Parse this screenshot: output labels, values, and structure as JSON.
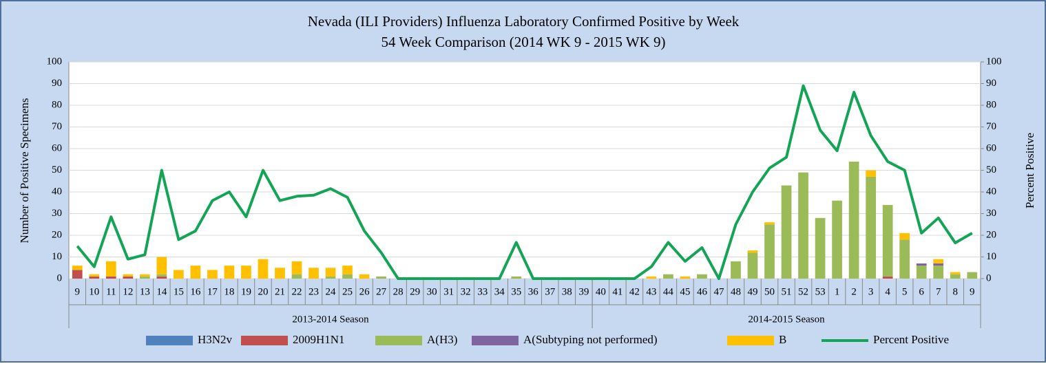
{
  "chart_data": {
    "type": "bar+line",
    "title": "Nevada (ILI Providers) Influenza Laboratory Confirmed Positive by Week",
    "subtitle": "54 Week Comparison (2014 WK 9 - 2015 WK 9)",
    "y_label": "Number of Positive Specimens",
    "y2_label": "Percent Positive",
    "categories": [
      "9",
      "10",
      "11",
      "12",
      "13",
      "14",
      "15",
      "16",
      "17",
      "18",
      "19",
      "20",
      "21",
      "22",
      "23",
      "24",
      "25",
      "26",
      "27",
      "28",
      "29",
      "30",
      "31",
      "32",
      "33",
      "34",
      "35",
      "36",
      "37",
      "38",
      "39",
      "40",
      "41",
      "42",
      "43",
      "44",
      "45",
      "46",
      "47",
      "48",
      "49",
      "50",
      "51",
      "52",
      "53",
      "1",
      "2",
      "3",
      "4",
      "5",
      "6",
      "7",
      "8",
      "9"
    ],
    "category_groups": [
      {
        "label": "2013-2014 Season",
        "count": 31
      },
      {
        "label": "2014-2015 Season",
        "count": 23
      }
    ],
    "ylim": [
      0,
      100
    ],
    "yticks": [
      0,
      10,
      20,
      30,
      40,
      50,
      60,
      70,
      80,
      90,
      100
    ],
    "y2lim": [
      0,
      100
    ],
    "y2ticks": [
      0,
      10,
      20,
      30,
      40,
      50,
      60,
      70,
      80,
      90,
      100
    ],
    "grid": true,
    "series": [
      {
        "name": "H3N2v",
        "type": "bar",
        "color": "#4f81bd",
        "values": [
          0,
          0,
          0,
          0,
          0,
          0,
          0,
          0,
          0,
          0,
          0,
          0,
          0,
          0,
          0,
          0,
          0,
          0,
          0,
          0,
          0,
          0,
          0,
          0,
          0,
          0,
          0,
          0,
          0,
          0,
          0,
          0,
          0,
          0,
          0,
          0,
          0,
          0,
          0,
          0,
          0,
          0,
          0,
          0,
          0,
          0,
          0,
          0,
          0,
          0,
          0,
          0,
          0,
          0
        ]
      },
      {
        "name": "2009H1N1",
        "type": "bar",
        "color": "#c0504d",
        "values": [
          4,
          1,
          1,
          1,
          0,
          1,
          0,
          0,
          0,
          0,
          0,
          0,
          0,
          0,
          0,
          0,
          0,
          0,
          0,
          0,
          0,
          0,
          0,
          0,
          0,
          0,
          0,
          0,
          0,
          0,
          0,
          0,
          0,
          0,
          0,
          0,
          0,
          0,
          0,
          0,
          0,
          0,
          0,
          0,
          0,
          0,
          0,
          0,
          1,
          0,
          0,
          0,
          0,
          0
        ]
      },
      {
        "name": "A(H3)",
        "type": "bar",
        "color": "#9bbb59",
        "values": [
          0,
          0,
          0,
          0,
          1,
          1,
          0,
          0,
          0,
          0,
          0,
          0,
          0,
          2,
          0,
          1,
          2,
          0,
          1,
          0,
          0,
          0,
          0,
          0,
          0,
          0,
          1,
          0,
          0,
          0,
          0,
          0,
          0,
          0,
          0,
          2,
          0,
          2,
          0,
          8,
          12,
          25,
          43,
          49,
          28,
          36,
          54,
          47,
          33,
          18,
          6,
          6,
          2,
          3
        ]
      },
      {
        "name": "A(Subtyping not performed)",
        "type": "bar",
        "color": "#8064a2",
        "values": [
          0,
          0,
          0,
          0,
          0,
          0,
          0,
          0,
          0,
          0,
          0,
          0,
          0,
          0,
          0,
          0,
          0,
          0,
          0,
          0,
          0,
          0,
          0,
          0,
          0,
          0,
          0,
          0,
          0,
          0,
          0,
          0,
          0,
          0,
          0,
          0,
          0,
          0,
          0,
          0,
          0,
          0,
          0,
          0,
          0,
          0,
          0,
          0,
          0,
          0,
          1,
          1,
          0,
          0
        ]
      },
      {
        "name": "B",
        "type": "bar",
        "color": "#ffc000",
        "values": [
          2,
          1,
          7,
          1,
          1,
          8,
          4,
          6,
          4,
          6,
          6,
          9,
          5,
          6,
          5,
          4,
          4,
          2,
          0,
          0,
          0,
          0,
          0,
          0,
          0,
          0,
          0,
          0,
          0,
          0,
          0,
          0,
          0,
          0,
          1,
          0,
          1,
          0,
          0,
          0,
          1,
          1,
          0,
          0,
          0,
          0,
          0,
          3,
          0,
          3,
          0,
          2,
          1,
          0
        ]
      },
      {
        "name": "Percent Positive",
        "type": "line",
        "axis": "y2",
        "color": "#13a456",
        "values": [
          15,
          5.5,
          28.5,
          9,
          11,
          50,
          18,
          22,
          36,
          40,
          28.5,
          50,
          36,
          38,
          38.5,
          41.5,
          37.5,
          22,
          12,
          0,
          0,
          0,
          0,
          0,
          0,
          0,
          16.7,
          0,
          0,
          0,
          0,
          0,
          0,
          0,
          5.5,
          16.7,
          8,
          14.3,
          0,
          25,
          40,
          51,
          56,
          89,
          68.5,
          59,
          86,
          66,
          54,
          50,
          21,
          28,
          16.5,
          21
        ]
      }
    ]
  }
}
